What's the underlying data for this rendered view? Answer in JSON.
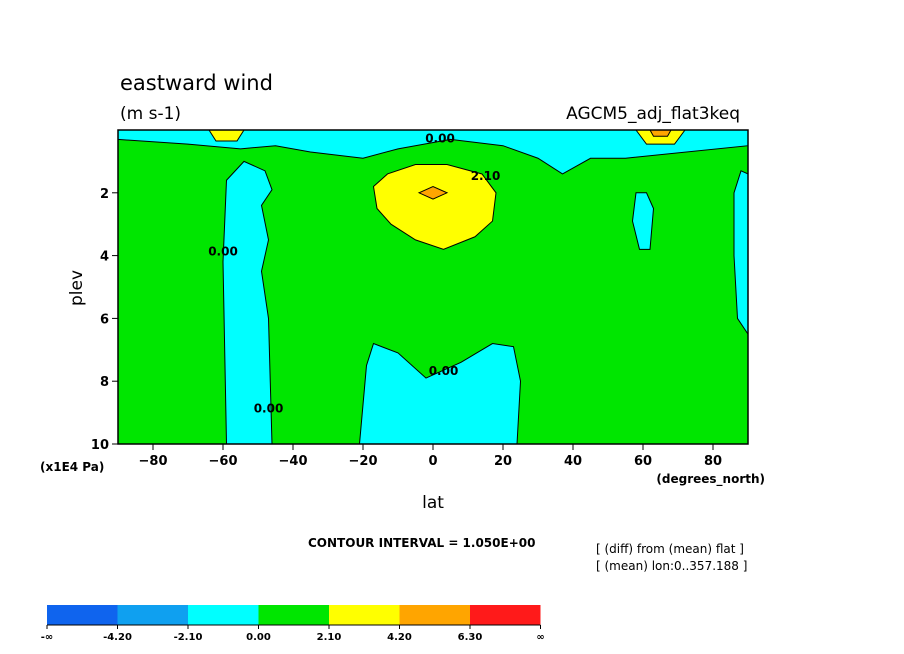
{
  "chart_data": {
    "type": "heatmap",
    "title": "eastward wind",
    "subtitle": "(m s-1)",
    "dataset": "AGCM5_adj_flat3keq",
    "xlabel": "lat",
    "x_unit": "(degrees_north)",
    "ylabel": "plev",
    "y_unit": "(x1E4 Pa)",
    "xlim": [
      -90,
      90
    ],
    "ylim": [
      10,
      0
    ],
    "x_ticks": [
      -80,
      -60,
      -40,
      -20,
      0,
      20,
      40,
      60,
      80
    ],
    "y_ticks": [
      2,
      4,
      6,
      8,
      10
    ],
    "contour_interval_text": "CONTOUR INTERVAL = 1.050E+00",
    "notes": [
      "[ (diff) from (mean) flat ]",
      "[ (mean) lon:0..357.188 ]"
    ],
    "contour_labels": [
      {
        "text": "0.00",
        "x": 2,
        "y": 0.4
      },
      {
        "text": "2.10",
        "x": 15,
        "y": 1.6
      },
      {
        "text": "0.00",
        "x": -60,
        "y": 4.0
      },
      {
        "text": "0.00",
        "x": 3,
        "y": 7.8
      },
      {
        "text": "0.00",
        "x": -47,
        "y": 9.0
      }
    ],
    "colorbar": {
      "labels": [
        "-∞",
        "-4.20",
        "-2.10",
        "0.00",
        "2.10",
        "4.20",
        "6.30",
        "∞"
      ],
      "colors": [
        "#0f64ee",
        "#0fa0f0",
        "#00ffff",
        "#00e600",
        "#ffff00",
        "#ffa500",
        "#ff1a1a"
      ]
    },
    "regions": [
      {
        "level": "cyan",
        "color": "#00ffff",
        "points": [
          [
            -90,
            0
          ],
          [
            90,
            0
          ],
          [
            90,
            0.5
          ],
          [
            55,
            0.9
          ],
          [
            45,
            0.9
          ],
          [
            37,
            1.4
          ],
          [
            30,
            0.9
          ],
          [
            20,
            0.5
          ],
          [
            5,
            0.3
          ],
          [
            -10,
            0.6
          ],
          [
            -20,
            0.9
          ],
          [
            -35,
            0.7
          ],
          [
            -45,
            0.5
          ],
          [
            -55,
            0.6
          ],
          [
            -70,
            0.45
          ],
          [
            -90,
            0.3
          ]
        ]
      },
      {
        "level": "cyan",
        "color": "#00ffff",
        "points": [
          [
            -59,
            10
          ],
          [
            -60,
            4.2
          ],
          [
            -59,
            1.6
          ],
          [
            -54,
            1.0
          ],
          [
            -48,
            1.3
          ],
          [
            -46,
            1.9
          ],
          [
            -49,
            2.4
          ],
          [
            -47,
            3.5
          ],
          [
            -49,
            4.5
          ],
          [
            -47,
            6.0
          ],
          [
            -46,
            10
          ]
        ]
      },
      {
        "level": "cyan",
        "color": "#00ffff",
        "points": [
          [
            -21,
            10
          ],
          [
            -19,
            7.5
          ],
          [
            -17,
            6.8
          ],
          [
            -10,
            7.1
          ],
          [
            -2,
            7.9
          ],
          [
            8,
            7.4
          ],
          [
            17,
            6.8
          ],
          [
            23,
            6.9
          ],
          [
            25,
            8.0
          ],
          [
            24,
            10
          ]
        ]
      },
      {
        "level": "cyan",
        "color": "#00ffff",
        "points": [
          [
            57,
            2.9
          ],
          [
            58,
            2.0
          ],
          [
            61,
            2.0
          ],
          [
            63,
            2.5
          ],
          [
            62,
            3.8
          ],
          [
            59,
            3.8
          ]
        ]
      },
      {
        "level": "cyan",
        "color": "#00ffff",
        "points": [
          [
            90,
            6.5
          ],
          [
            87,
            6.0
          ],
          [
            86,
            4.0
          ],
          [
            86,
            2.0
          ],
          [
            88,
            1.3
          ],
          [
            90,
            1.4
          ]
        ]
      },
      {
        "level": "yellow",
        "color": "#ffff00",
        "points": [
          [
            -17,
            1.8
          ],
          [
            -13,
            1.4
          ],
          [
            -5,
            1.1
          ],
          [
            4,
            1.1
          ],
          [
            14,
            1.4
          ],
          [
            18,
            2.0
          ],
          [
            17,
            2.9
          ],
          [
            12,
            3.4
          ],
          [
            3,
            3.8
          ],
          [
            -5,
            3.5
          ],
          [
            -12,
            3.0
          ],
          [
            -16,
            2.5
          ]
        ]
      },
      {
        "level": "orange",
        "color": "#ffa500",
        "points": [
          [
            -4,
            2.0
          ],
          [
            0,
            1.8
          ],
          [
            4,
            2.0
          ],
          [
            0,
            2.2
          ]
        ]
      },
      {
        "level": "yellow",
        "color": "#ffff00",
        "points": [
          [
            -64,
            0
          ],
          [
            -54,
            0
          ],
          [
            -56,
            0.35
          ],
          [
            -62,
            0.35
          ]
        ]
      },
      {
        "level": "yellow",
        "color": "#ffff00",
        "points": [
          [
            58,
            0
          ],
          [
            72,
            0
          ],
          [
            69,
            0.45
          ],
          [
            61,
            0.45
          ]
        ]
      },
      {
        "level": "orange",
        "color": "#ffa500",
        "points": [
          [
            62,
            0
          ],
          [
            68,
            0
          ],
          [
            67,
            0.2
          ],
          [
            63,
            0.2
          ]
        ]
      }
    ]
  }
}
